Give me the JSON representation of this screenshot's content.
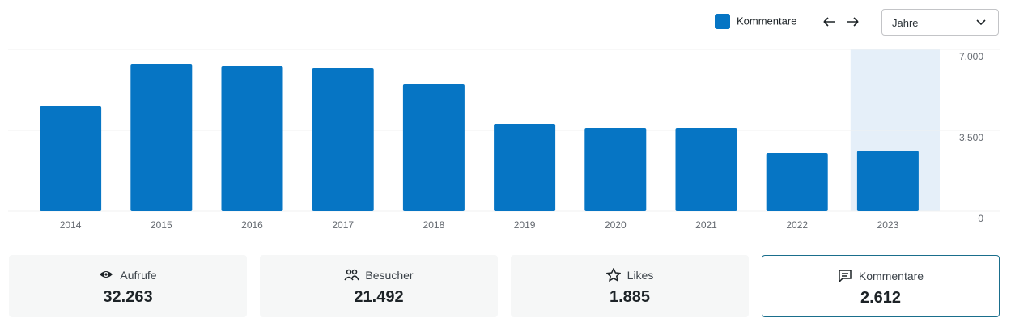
{
  "chart_data": {
    "type": "bar",
    "categories": [
      "2014",
      "2015",
      "2016",
      "2017",
      "2018",
      "2019",
      "2020",
      "2021",
      "2022",
      "2023"
    ],
    "series": [
      {
        "name": "Kommentare",
        "color": "#0675c4",
        "values": [
          4550,
          6370,
          6265,
          6195,
          5495,
          3780,
          3605,
          3605,
          2520,
          2612
        ]
      }
    ],
    "ylim": [
      0,
      7000
    ],
    "yticks": [
      0,
      {
        "value": 3500,
        "label": "3.500"
      },
      {
        "value": 7000,
        "label": "7.000"
      }
    ],
    "grid": true,
    "highlight": "2023",
    "highlight_color": "#e5eff9"
  },
  "period_select": "Jahre",
  "cards": [
    {
      "label": "Aufrufe",
      "value": "32.263"
    },
    {
      "label": "Besucher",
      "value": "21.492"
    },
    {
      "label": "Likes",
      "value": "1.885"
    },
    {
      "label": "Kommentare",
      "value": "2.612"
    }
  ],
  "selected_card": "Kommentare"
}
